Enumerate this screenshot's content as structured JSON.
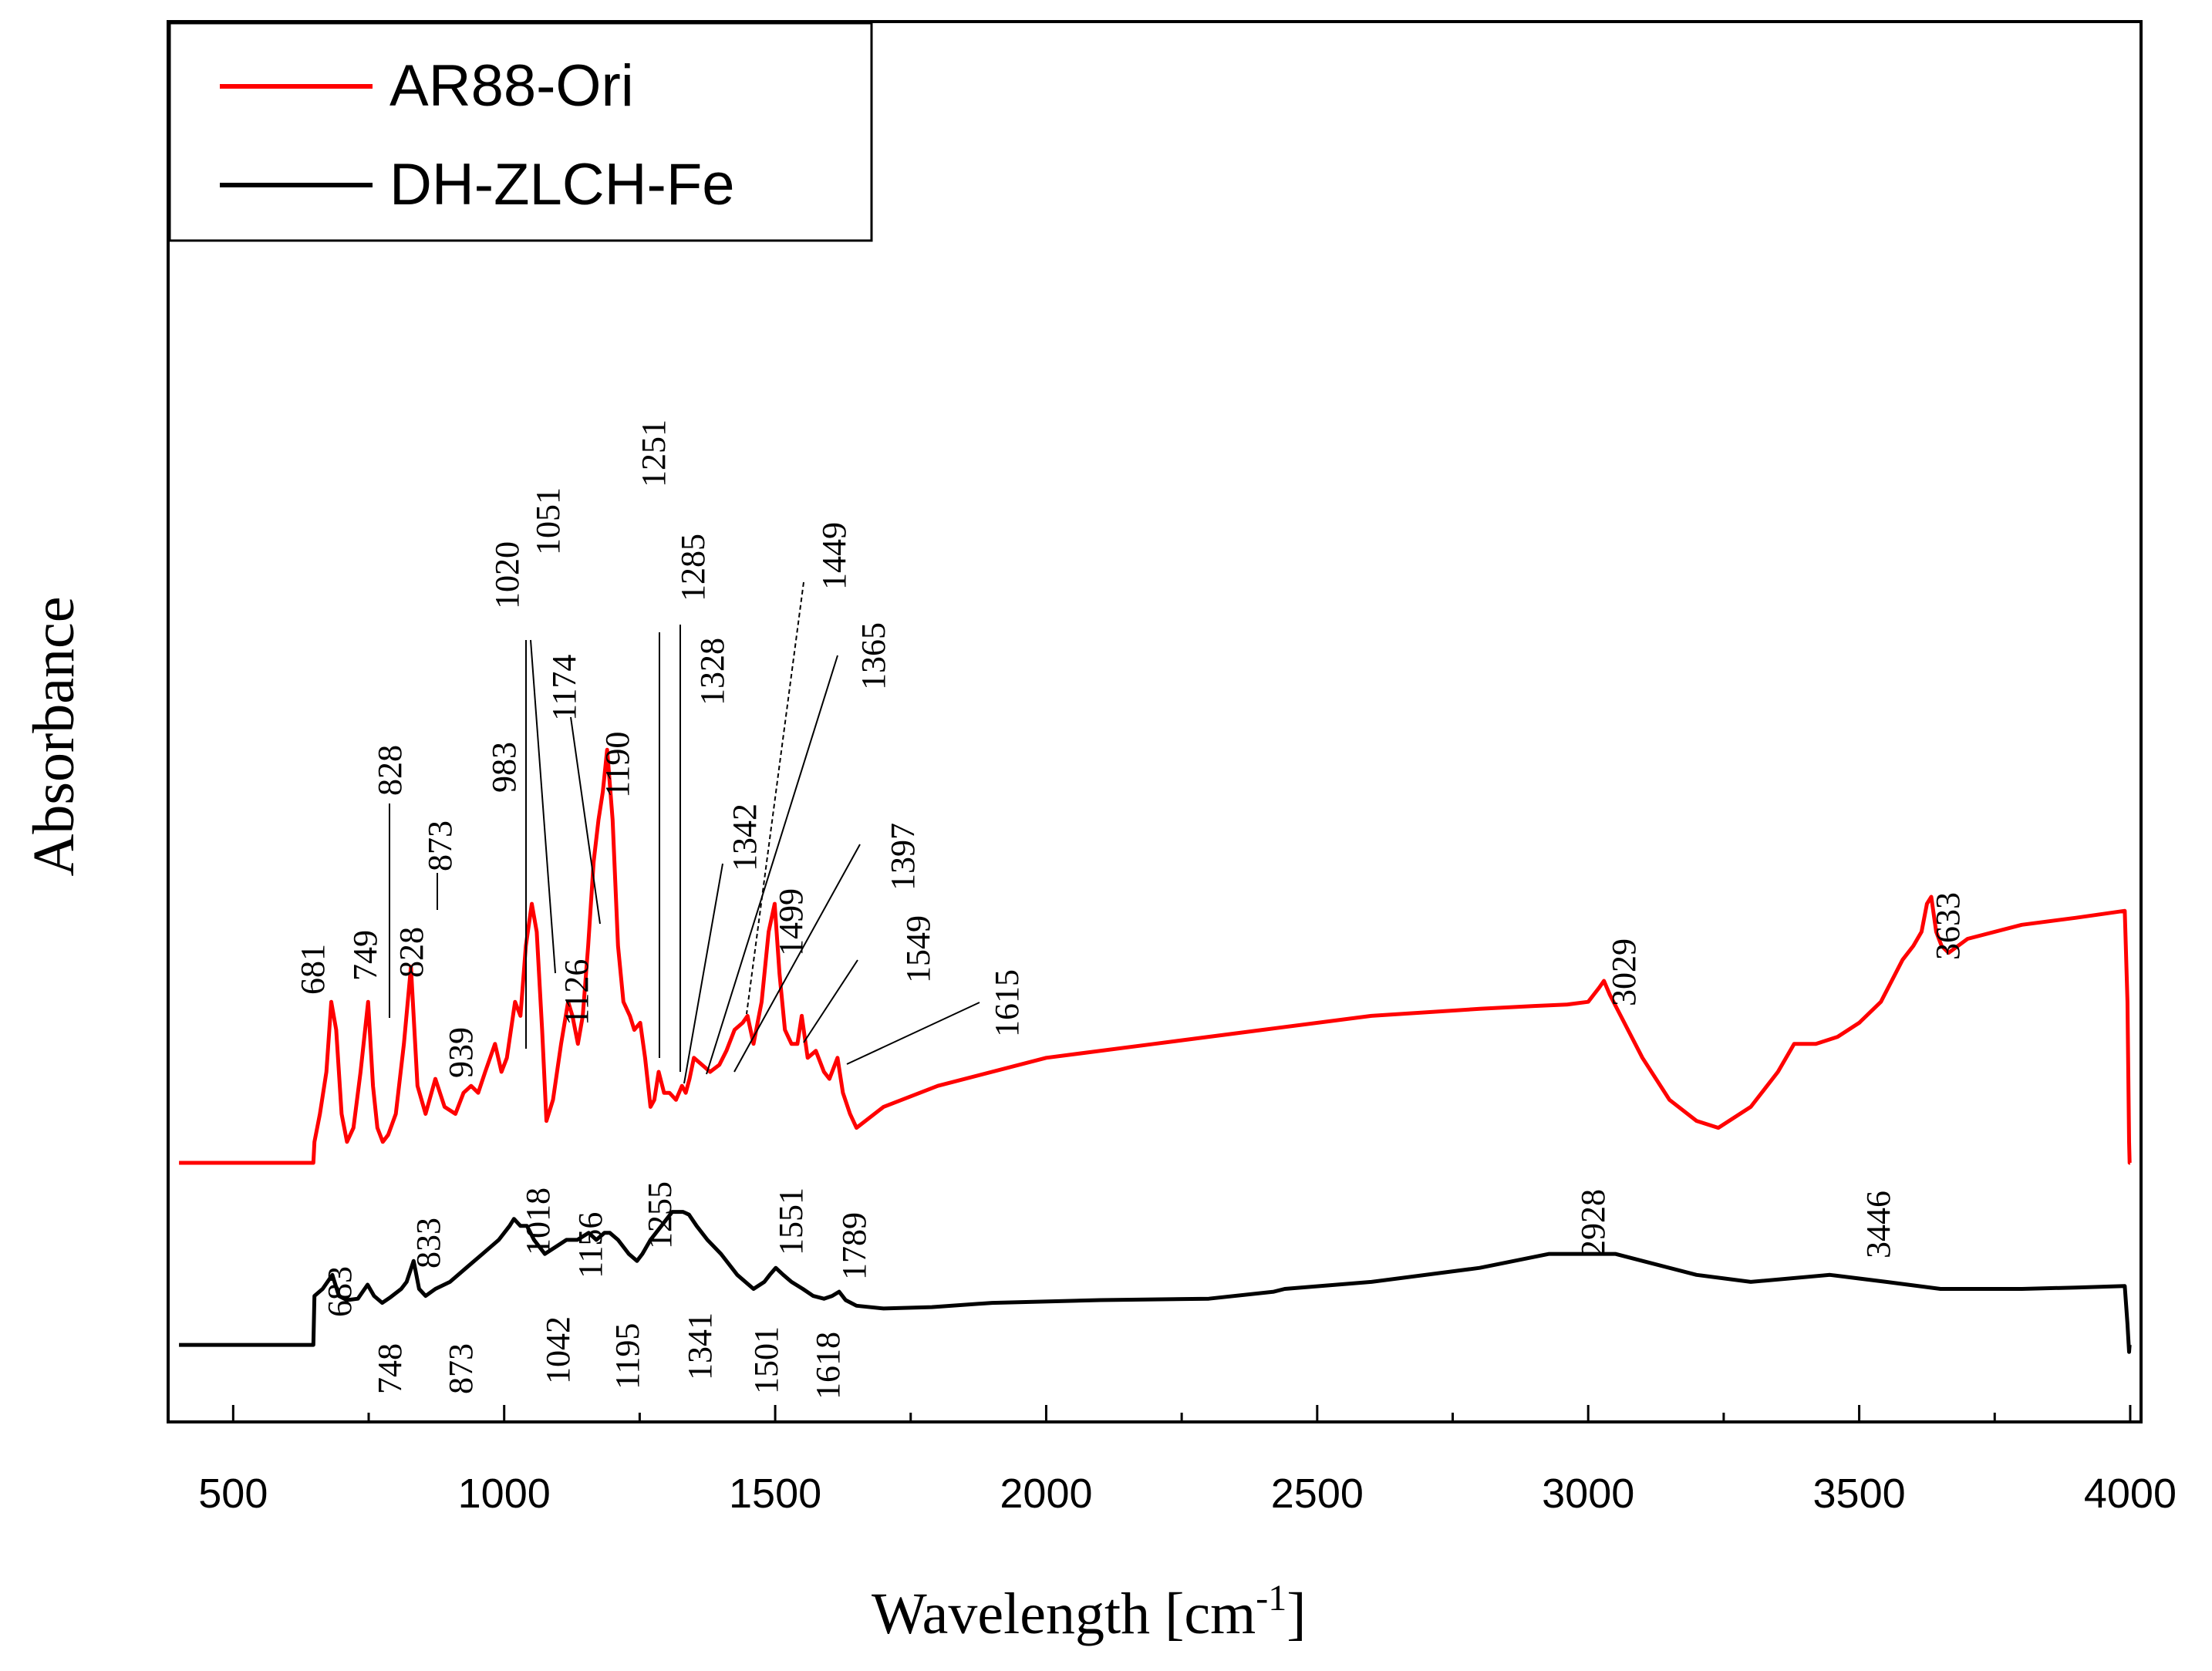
{
  "chart_data": {
    "type": "line",
    "title": "",
    "xlabel": "Wavelength [cm",
    "xlabel_sup": "-1",
    "xlabel_end": "]",
    "ylabel": "Absorbance",
    "xlim": [
      380,
      4020
    ],
    "ylim": [
      0,
      1
    ],
    "xticks": [
      500,
      1000,
      1500,
      2000,
      2500,
      3000,
      3500,
      4000
    ],
    "xtick_labels": [
      "500",
      "1000",
      "1500",
      "2000",
      "2500",
      "3000",
      "3500",
      "4000"
    ],
    "legend_position": "top-left",
    "series": [
      {
        "name": "AR88-Ori",
        "color": "#ff0000",
        "x": [
          400,
          648,
          650,
          660,
          672,
          681,
          690,
          700,
          710,
          722,
          735,
          749,
          758,
          766,
          776,
          786,
          800,
          815,
          828,
          840,
          855,
          873,
          890,
          910,
          925,
          939,
          952,
          965,
          983,
          995,
          1005,
          1020,
          1030,
          1040,
          1051,
          1060,
          1070,
          1078,
          1090,
          1105,
          1118,
          1126,
          1136,
          1145,
          1155,
          1165,
          1174,
          1182,
          1190,
          1200,
          1210,
          1220,
          1232,
          1240,
          1251,
          1260,
          1270,
          1277,
          1285,
          1295,
          1305,
          1317,
          1328,
          1335,
          1342,
          1350,
          1365,
          1380,
          1397,
          1410,
          1425,
          1440,
          1449,
          1460,
          1475,
          1488,
          1499,
          1508,
          1518,
          1530,
          1541,
          1549,
          1560,
          1575,
          1590,
          1600,
          1615,
          1625,
          1638,
          1650,
          1700,
          1800,
          2000,
          2200,
          2400,
          2600,
          2800,
          2900,
          2960,
          3000,
          3010,
          3020,
          3029,
          3040,
          3060,
          3100,
          3150,
          3200,
          3240,
          3300,
          3350,
          3380,
          3420,
          3460,
          3500,
          3540,
          3580,
          3600,
          3615,
          3625,
          3633,
          3642,
          3652,
          3665,
          3700,
          3800,
          3900,
          3990,
          3995,
          3998,
          3999,
          4000
        ],
        "y": [
          0.185,
          0.185,
          0.2,
          0.22,
          0.25,
          0.3,
          0.28,
          0.22,
          0.2,
          0.21,
          0.25,
          0.3,
          0.24,
          0.21,
          0.2,
          0.205,
          0.22,
          0.27,
          0.325,
          0.24,
          0.22,
          0.245,
          0.225,
          0.22,
          0.235,
          0.24,
          0.235,
          0.25,
          0.27,
          0.25,
          0.26,
          0.3,
          0.29,
          0.34,
          0.37,
          0.35,
          0.28,
          0.215,
          0.23,
          0.27,
          0.3,
          0.29,
          0.27,
          0.29,
          0.34,
          0.4,
          0.43,
          0.45,
          0.48,
          0.43,
          0.34,
          0.3,
          0.29,
          0.28,
          0.285,
          0.26,
          0.225,
          0.23,
          0.25,
          0.235,
          0.235,
          0.23,
          0.24,
          0.235,
          0.245,
          0.26,
          0.255,
          0.25,
          0.255,
          0.265,
          0.28,
          0.285,
          0.29,
          0.27,
          0.3,
          0.35,
          0.37,
          0.32,
          0.28,
          0.27,
          0.27,
          0.29,
          0.26,
          0.265,
          0.25,
          0.245,
          0.26,
          0.235,
          0.22,
          0.21,
          0.225,
          0.24,
          0.26,
          0.27,
          0.28,
          0.29,
          0.295,
          0.297,
          0.298,
          0.3,
          0.305,
          0.31,
          0.315,
          0.305,
          0.29,
          0.26,
          0.23,
          0.215,
          0.21,
          0.225,
          0.25,
          0.27,
          0.27,
          0.275,
          0.285,
          0.3,
          0.33,
          0.34,
          0.35,
          0.37,
          0.375,
          0.35,
          0.34,
          0.335,
          0.345,
          0.355,
          0.36,
          0.365,
          0.3,
          0.2,
          0.185,
          0.185
        ]
      },
      {
        "name": "DH-ZLCH-Fe",
        "color": "#000000",
        "x": [
          400,
          648,
          650,
          665,
          683,
          695,
          710,
          730,
          748,
          760,
          775,
          790,
          810,
          820,
          833,
          843,
          855,
          873,
          900,
          930,
          960,
          990,
          1010,
          1018,
          1030,
          1042,
          1055,
          1075,
          1095,
          1115,
          1135,
          1156,
          1170,
          1185,
          1195,
          1210,
          1230,
          1245,
          1255,
          1270,
          1290,
          1310,
          1330,
          1341,
          1355,
          1375,
          1400,
          1430,
          1460,
          1480,
          1490,
          1501,
          1515,
          1530,
          1551,
          1570,
          1590,
          1605,
          1618,
          1630,
          1650,
          1700,
          1789,
          1900,
          2100,
          2300,
          2420,
          2440,
          2600,
          2800,
          2928,
          3050,
          3100,
          3200,
          3300,
          3446,
          3550,
          3650,
          3700,
          3800,
          3900,
          3990,
          3995,
          3998,
          3999,
          4000
        ],
        "y": [
          0.055,
          0.055,
          0.09,
          0.095,
          0.105,
          0.09,
          0.087,
          0.088,
          0.098,
          0.09,
          0.085,
          0.089,
          0.095,
          0.1,
          0.115,
          0.095,
          0.09,
          0.095,
          0.1,
          0.11,
          0.12,
          0.13,
          0.14,
          0.145,
          0.14,
          0.14,
          0.13,
          0.12,
          0.125,
          0.13,
          0.13,
          0.135,
          0.13,
          0.135,
          0.135,
          0.13,
          0.12,
          0.115,
          0.12,
          0.13,
          0.14,
          0.15,
          0.15,
          0.148,
          0.14,
          0.13,
          0.12,
          0.105,
          0.095,
          0.1,
          0.105,
          0.11,
          0.105,
          0.1,
          0.095,
          0.09,
          0.088,
          0.09,
          0.093,
          0.087,
          0.083,
          0.081,
          0.082,
          0.085,
          0.087,
          0.088,
          0.093,
          0.095,
          0.1,
          0.11,
          0.12,
          0.12,
          0.115,
          0.105,
          0.1,
          0.105,
          0.1,
          0.095,
          0.095,
          0.095,
          0.096,
          0.097,
          0.07,
          0.05,
          0.055,
          0.055
        ]
      }
    ],
    "annotations_red": [
      {
        "label": "681",
        "x": 681
      },
      {
        "label": "749",
        "x": 749
      },
      {
        "label": "828",
        "x": 828
      },
      {
        "label": "828",
        "x": 828
      },
      {
        "label": "873",
        "x": 873
      },
      {
        "label": "939",
        "x": 939
      },
      {
        "label": "983",
        "x": 983
      },
      {
        "label": "1020",
        "x": 1020
      },
      {
        "label": "1051",
        "x": 1051
      },
      {
        "label": "1126",
        "x": 1126
      },
      {
        "label": "1174",
        "x": 1174
      },
      {
        "label": "1190",
        "x": 1190
      },
      {
        "label": "1251",
        "x": 1251
      },
      {
        "label": "1285",
        "x": 1285
      },
      {
        "label": "1328",
        "x": 1328
      },
      {
        "label": "1342",
        "x": 1342
      },
      {
        "label": "1449",
        "x": 1449
      },
      {
        "label": "1365",
        "x": 1365
      },
      {
        "label": "1499",
        "x": 1499
      },
      {
        "label": "1397",
        "x": 1397
      },
      {
        "label": "1549",
        "x": 1549
      },
      {
        "label": "1615",
        "x": 1615
      },
      {
        "label": "3029",
        "x": 3029
      },
      {
        "label": "3633",
        "x": 3633
      }
    ],
    "annotations_black_above": [
      "683",
      "833",
      "1018",
      "1156",
      "1255",
      "1551",
      "1789",
      "2928",
      "3446"
    ],
    "annotations_black_below": [
      "748",
      "873",
      "1042",
      "1195",
      "1341",
      "1501",
      "1618"
    ]
  }
}
